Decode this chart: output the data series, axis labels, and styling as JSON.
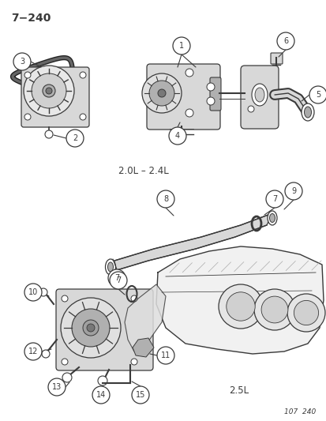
{
  "title": "7−240",
  "subtitle_top": "2.0L – 2.4L",
  "subtitle_bottom": "2.5L",
  "footer": "107  240",
  "bg_color": "#ffffff",
  "line_col": "#3a3a3a",
  "gray_light": "#d8d8d8",
  "gray_mid": "#b0b0b0",
  "gray_dark": "#787878",
  "callout_r": 0.021
}
